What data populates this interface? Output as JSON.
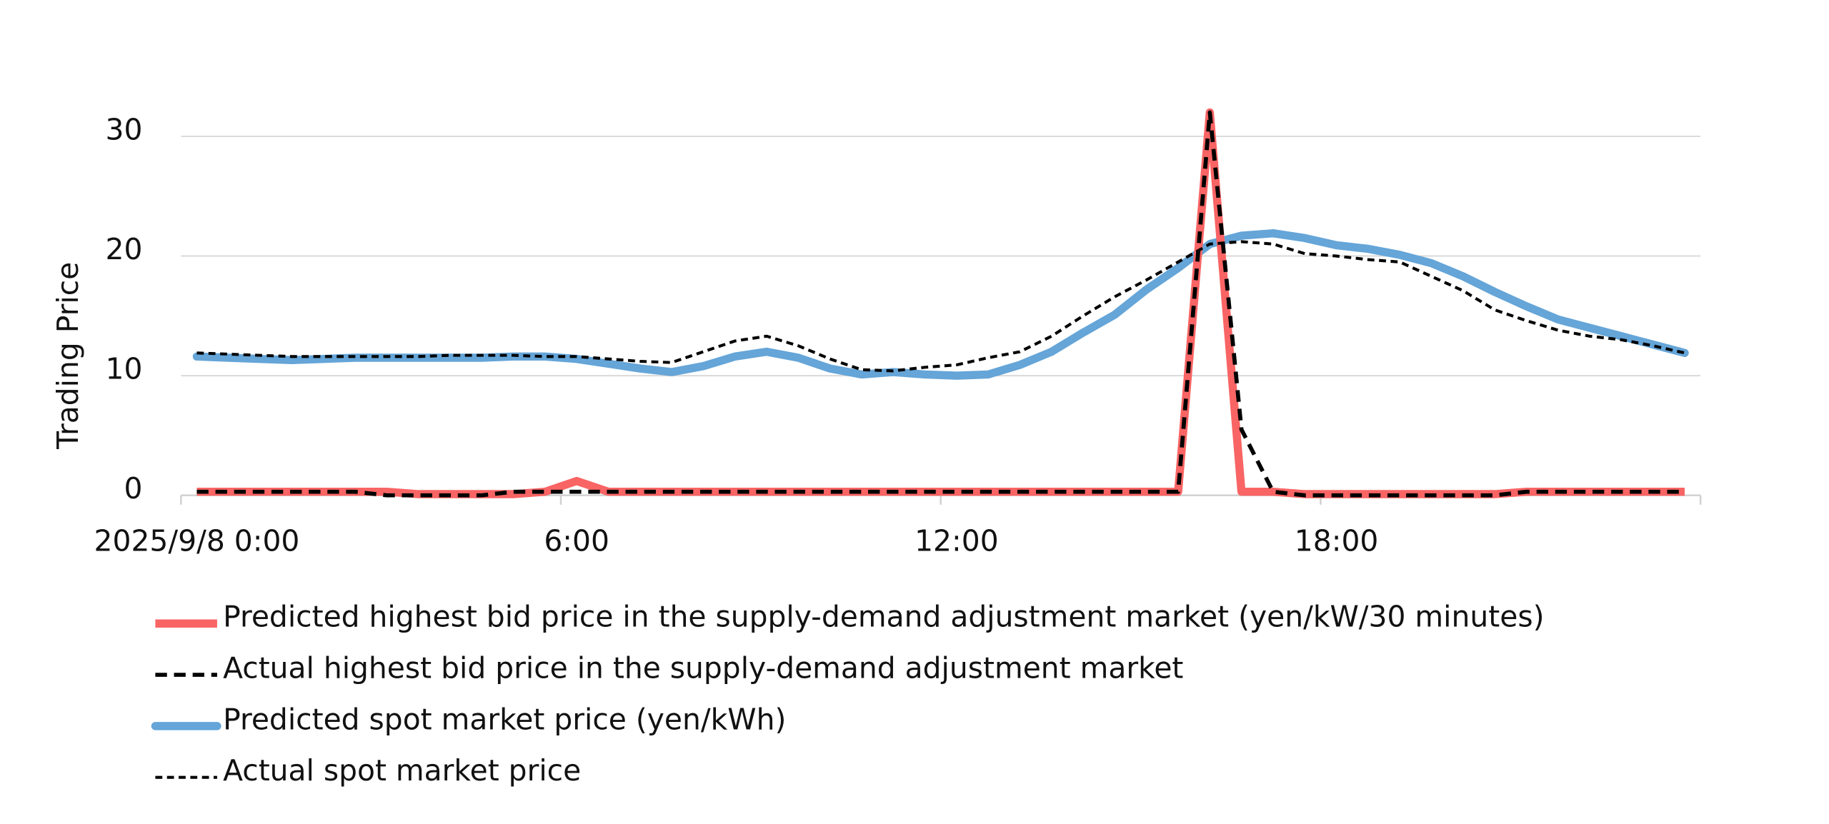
{
  "chart_data": {
    "type": "line",
    "y_label": "Trading Price",
    "categories": [
      "2025/9/8 0:00",
      null,
      null,
      null,
      null,
      null,
      null,
      null,
      null,
      null,
      null,
      null,
      "6:00",
      null,
      null,
      null,
      null,
      null,
      null,
      null,
      null,
      null,
      null,
      null,
      "12:00",
      null,
      null,
      null,
      null,
      null,
      null,
      null,
      null,
      null,
      null,
      null,
      "18:00",
      null,
      null,
      null,
      null,
      null,
      null,
      null,
      null,
      null,
      null,
      null
    ],
    "ylim": [
      0,
      35
    ],
    "yticks": [
      0,
      10,
      20,
      30
    ],
    "grid": true,
    "legend": "bottom",
    "series": [
      {
        "name": "Predicted highest bid price in the supply-demand adjustment market (yen/kW/30 minutes)",
        "color": "#f96464",
        "values": [
          0.3,
          0.3,
          0.3,
          0.3,
          0.3,
          0.3,
          0.3,
          0.1,
          0.1,
          0.1,
          0.1,
          0.3,
          1.2,
          0.3,
          0.3,
          0.3,
          0.3,
          0.3,
          0.3,
          0.3,
          0.3,
          0.3,
          0.3,
          0.3,
          0.3,
          0.3,
          0.3,
          0.3,
          0.3,
          0.3,
          0.3,
          0.3,
          32,
          0.3,
          0.3,
          0.1,
          0.1,
          0.1,
          0.1,
          0.1,
          0.1,
          0.1,
          0.3,
          0.3,
          0.3,
          0.3,
          0.3,
          0.3
        ]
      },
      {
        "name": "Actual highest bid price in the supply-demand adjustment market",
        "color": "#000000",
        "values": [
          0.3,
          0.3,
          0.3,
          0.3,
          0.3,
          0.3,
          0,
          0,
          0,
          0,
          0.3,
          0.3,
          0.3,
          0.3,
          0.3,
          0.3,
          0.3,
          0.3,
          0.3,
          0.3,
          0.3,
          0.3,
          0.3,
          0.3,
          0.3,
          0.3,
          0.3,
          0.3,
          0.3,
          0.3,
          0.3,
          0.3,
          32,
          5.5,
          0.3,
          0,
          0,
          0,
          0,
          0,
          0,
          0,
          0.3,
          0.3,
          0.3,
          0.3,
          0.3,
          0.3
        ]
      },
      {
        "name": "Predicted spot market price (yen/kWh)",
        "color": "#65a5d8",
        "values": [
          11.6,
          11.5,
          11.4,
          11.3,
          11.4,
          11.5,
          11.5,
          11.5,
          11.5,
          11.5,
          11.6,
          11.6,
          11.4,
          11.0,
          10.6,
          10.3,
          10.8,
          11.6,
          12.0,
          11.5,
          10.6,
          10.1,
          10.3,
          10.1,
          10.0,
          10.1,
          10.9,
          12.0,
          13.6,
          15.1,
          17.2,
          19.0,
          21.0,
          21.7,
          21.9,
          21.5,
          20.9,
          20.6,
          20.1,
          19.4,
          18.3,
          17.0,
          15.8,
          14.7,
          14.0,
          13.3,
          12.6,
          11.9
        ]
      },
      {
        "name": "Actual spot market price",
        "color": "#000000",
        "values": [
          11.9,
          11.8,
          11.7,
          11.6,
          11.6,
          11.6,
          11.6,
          11.6,
          11.7,
          11.7,
          11.7,
          11.6,
          11.6,
          11.4,
          11.2,
          11.1,
          12.0,
          12.9,
          13.3,
          12.5,
          11.4,
          10.5,
          10.4,
          10.7,
          10.9,
          11.5,
          12.0,
          13.3,
          15.0,
          16.6,
          18.0,
          19.5,
          21.0,
          21.2,
          21.0,
          20.2,
          20.0,
          19.7,
          19.5,
          18.3,
          17.1,
          15.5,
          14.6,
          13.8,
          13.3,
          13.0,
          12.5,
          11.9
        ]
      }
    ]
  }
}
